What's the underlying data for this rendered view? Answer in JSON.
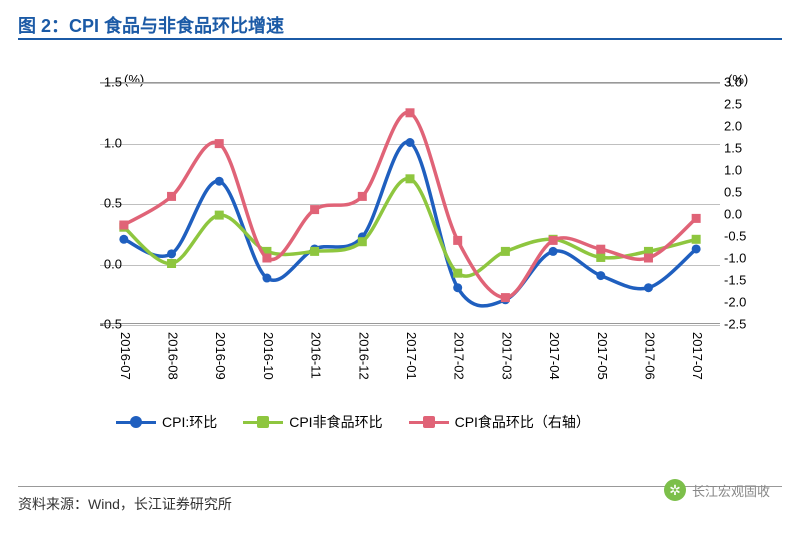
{
  "title": {
    "text": "图 2：CPI 食品与非食品环比增速",
    "color": "#1b5aa6",
    "fontsize": 18,
    "underline_color": "#1b5aa6"
  },
  "chart": {
    "type": "line",
    "background_color": "#ffffff",
    "grid_color": "#bfbfbf",
    "axis_color": "#999999",
    "x_categories": [
      "2016-07",
      "2016-08",
      "2016-09",
      "2016-10",
      "2016-11",
      "2016-12",
      "2017-01",
      "2017-02",
      "2017-03",
      "2017-04",
      "2017-05",
      "2017-06",
      "2017-07"
    ],
    "left_axis": {
      "unit": "(%)",
      "min": -0.5,
      "max": 1.5,
      "step": 0.5,
      "ticks": [
        "-0.5",
        "0.0",
        "0.5",
        "1.0",
        "1.5"
      ],
      "label_fontsize": 13
    },
    "right_axis": {
      "unit": "(%)",
      "min": -2.5,
      "max": 3.0,
      "step": 0.5,
      "ticks": [
        "-2.5",
        "-2.0",
        "-1.5",
        "-1.0",
        "-0.5",
        "0.0",
        "0.5",
        "1.0",
        "1.5",
        "2.0",
        "2.5",
        "3.0"
      ],
      "label_fontsize": 13
    },
    "series": [
      {
        "name": "CPI:环比",
        "axis": "left",
        "color": "#1f5fbf",
        "line_width": 3.5,
        "marker": "circle",
        "marker_size": 9,
        "values": [
          0.2,
          0.08,
          0.68,
          -0.12,
          0.12,
          0.22,
          1.0,
          -0.2,
          -0.3,
          0.1,
          -0.1,
          -0.2,
          0.12
        ]
      },
      {
        "name": "CPI非食品环比",
        "axis": "left",
        "color": "#8ec63f",
        "line_width": 3.5,
        "marker": "square",
        "marker_size": 9,
        "values": [
          0.3,
          0.0,
          0.4,
          0.1,
          0.1,
          0.18,
          0.7,
          -0.08,
          0.1,
          0.2,
          0.05,
          0.1,
          0.2
        ]
      },
      {
        "name": "CPI食品环比（右轴）",
        "axis": "right",
        "color": "#e06377",
        "line_width": 3.5,
        "marker": "square",
        "marker_size": 9,
        "values": [
          -0.25,
          0.4,
          1.6,
          -1.0,
          0.1,
          0.4,
          2.3,
          -0.6,
          -1.9,
          -0.6,
          -0.8,
          -1.0,
          -0.1
        ]
      }
    ]
  },
  "legend": {
    "fontsize": 14
  },
  "source": {
    "label": "资料来源：Wind，长江证券研究所",
    "fontsize": 14
  },
  "watermark": {
    "text": "长江宏观固收",
    "icon_bg": "#7cbf4a"
  }
}
